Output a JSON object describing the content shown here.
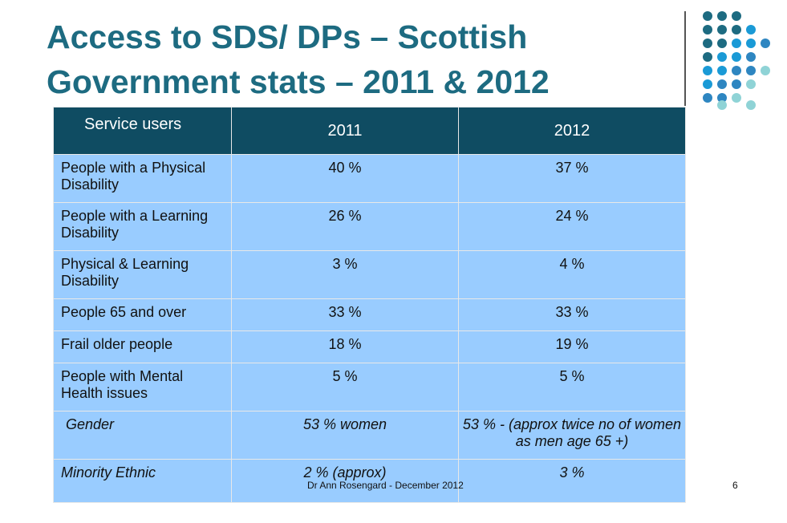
{
  "slide": {
    "title_line1": "Access to SDS/ DPs – Scottish",
    "title_line2": "Government stats – 2011 & 2012",
    "footer": "Dr Ann Rosengard  - December 2012",
    "page_number": "6"
  },
  "colors": {
    "title": "#1d6b81",
    "header_bg": "#0f4c62",
    "row_bg": "#99ccff",
    "dot_dark": "#1d6b81",
    "dot_blue": "#2e86c1",
    "dot_mid": "#1a9ad6",
    "dot_light": "#8fd3d6"
  },
  "table": {
    "headers": [
      "Service users",
      "2011",
      "2012"
    ],
    "rows": [
      {
        "label": "People with a Physical Disability",
        "v2011": "40 %",
        "v2012": "37 %"
      },
      {
        "label": "People with a Learning Disability",
        "v2011": "26 %",
        "v2012": "24 %"
      },
      {
        "label": "Physical & Learning Disability",
        "v2011": "3 %",
        "v2012": "4 %"
      },
      {
        "label": "People 65 and over",
        "v2011": "33 %",
        "v2012": "33 %"
      },
      {
        "label": "Frail older people",
        "v2011": "18 %",
        "v2012": "19 %"
      },
      {
        "label": "People with Mental Health issues",
        "v2011": "5 %",
        "v2012": "5 %"
      },
      {
        "label": "Gender",
        "v2011": "53 % women",
        "v2012": "53 % - (approx twice no of women as men age 65 +)"
      },
      {
        "label": "Minority Ethnic",
        "v2011": "2 % (approx)",
        "v2012": "3 %"
      }
    ]
  }
}
